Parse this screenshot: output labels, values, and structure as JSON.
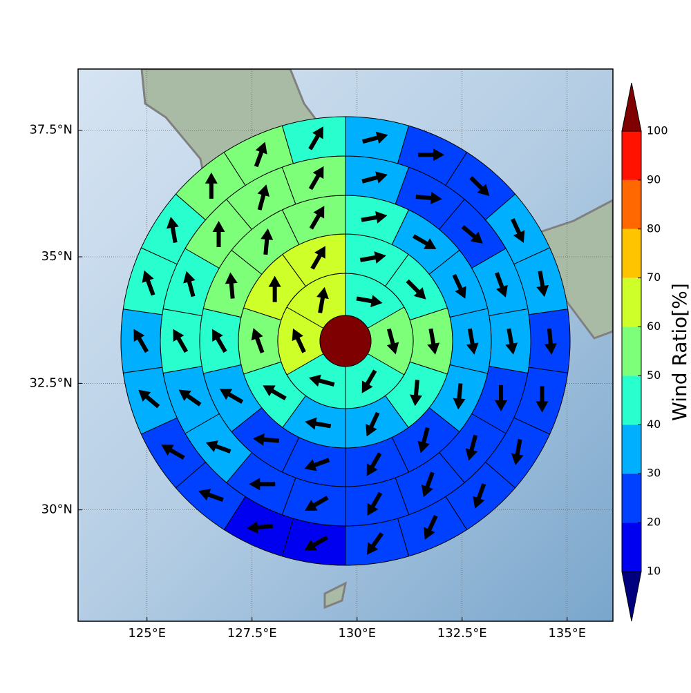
{
  "chart_data": {
    "type": "polar-grid-map",
    "xlim": [
      123.36,
      136.09
    ],
    "ylim": [
      27.8,
      38.71
    ],
    "xticks": [
      {
        "value": 125,
        "label": "125°E"
      },
      {
        "value": 127.5,
        "label": "127.5°E"
      },
      {
        "value": 130,
        "label": "130°E"
      },
      {
        "value": 132.5,
        "label": "132.5°E"
      },
      {
        "value": 135,
        "label": "135°E"
      }
    ],
    "yticks": [
      {
        "value": 30,
        "label": "30°N"
      },
      {
        "value": 32.5,
        "label": "32.5°N"
      },
      {
        "value": 35,
        "label": "35°N"
      },
      {
        "value": 37.5,
        "label": "37.5°N"
      }
    ],
    "grid": true,
    "colorbar": {
      "label": "Wind Ratio[%]",
      "levels": [
        10,
        20,
        30,
        40,
        50,
        60,
        70,
        80,
        90,
        100
      ],
      "colors": [
        "#0000f0",
        "#0040ff",
        "#00b0ff",
        "#29ffce",
        "#7dff7a",
        "#ceff29",
        "#ffc400",
        "#ff6800",
        "#ff1300"
      ],
      "under_color": "#00007f",
      "over_color": "#7f0000"
    },
    "center_value": 100,
    "rings": [
      {
        "values": [
          45,
          55,
          45,
          45,
          65,
          65
        ],
        "directions": [
          100,
          165,
          210,
          285,
          335,
          10
        ]
      },
      {
        "values": [
          45,
          45,
          55,
          45,
          35,
          35,
          45,
          55,
          65,
          65
        ],
        "directions": [
          80,
          135,
          170,
          185,
          205,
          280,
          300,
          340,
          0,
          30
        ]
      },
      {
        "values": [
          45,
          35,
          35,
          35,
          35,
          25,
          25,
          25,
          25,
          35,
          45,
          55,
          55,
          55
        ],
        "directions": [
          80,
          120,
          155,
          170,
          185,
          195,
          210,
          250,
          275,
          300,
          330,
          355,
          5,
          30
        ]
      },
      {
        "values": [
          35,
          25,
          25,
          35,
          35,
          25,
          25,
          25,
          25,
          25,
          25,
          35,
          35,
          45,
          45,
          55,
          55,
          55
        ],
        "directions": [
          75,
          95,
          130,
          160,
          170,
          180,
          195,
          200,
          210,
          240,
          270,
          290,
          305,
          330,
          345,
          0,
          15,
          30
        ]
      },
      {
        "values": [
          35,
          25,
          25,
          35,
          35,
          25,
          25,
          25,
          25,
          25,
          25,
          15,
          15,
          25,
          25,
          35,
          35,
          45,
          45,
          55,
          55,
          45
        ],
        "directions": [
          75,
          90,
          135,
          155,
          170,
          175,
          180,
          190,
          200,
          205,
          215,
          240,
          265,
          290,
          300,
          310,
          330,
          340,
          350,
          0,
          20,
          30
        ]
      }
    ]
  }
}
